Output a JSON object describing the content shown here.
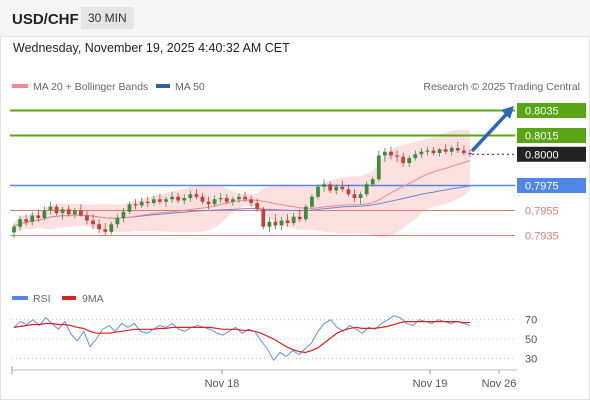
{
  "header": {
    "pair": "USD/CHF",
    "timeframe": "30 MIN"
  },
  "datetime": "Wednesday, November 19, 2025 4:40:32 AM CET",
  "legend": {
    "bollinger": "MA 20 + Bollinger Bands",
    "ma50": "MA 50",
    "credit": "Research © 2025 Trading Central"
  },
  "rsi_legend": {
    "rsi": "RSI",
    "ma9": "9MA"
  },
  "colors": {
    "green": "#5aa516",
    "blue": "#4f86e8",
    "red": "#e07b7b",
    "black": "#222222",
    "candle_up": "#3f8a3f",
    "candle_down": "#c83c3c",
    "ma20": "#f08a8a",
    "ma50": "#6f86c8",
    "band": "#fbdada",
    "arrow": "#2b67b3"
  },
  "chart_data": [
    {
      "type": "candlestick",
      "title": "USD/CHF 30 MIN",
      "ylim": [
        0.7905,
        0.8045
      ],
      "levels": [
        {
          "value": 0.8035,
          "label": "0.8035",
          "kind": "resistance",
          "color": "#5aa516"
        },
        {
          "value": 0.8015,
          "label": "0.8015",
          "kind": "resistance",
          "color": "#5aa516"
        },
        {
          "value": 0.8,
          "label": "0.8000",
          "kind": "last",
          "color": "#222222"
        },
        {
          "value": 0.7975,
          "label": "0.7975",
          "kind": "pivot",
          "color": "#4f86e8"
        },
        {
          "value": 0.7955,
          "label": "0.7955",
          "kind": "support",
          "color": "#e07b7b"
        },
        {
          "value": 0.7935,
          "label": "0.7935",
          "kind": "support",
          "color": "#e07b7b"
        }
      ],
      "x_ticks": [
        "Nov 18",
        "Nov 19",
        "Nov 26"
      ],
      "ohlc": [
        [
          0.79375,
          0.7944,
          0.7933,
          0.7942
        ],
        [
          0.7942,
          0.79505,
          0.7939,
          0.7948
        ],
        [
          0.7948,
          0.7952,
          0.7943,
          0.7946
        ],
        [
          0.7946,
          0.7954,
          0.7943,
          0.7951
        ],
        [
          0.7951,
          0.7956,
          0.7946,
          0.7949
        ],
        [
          0.7949,
          0.7958,
          0.7947,
          0.7955
        ],
        [
          0.7955,
          0.7962,
          0.7952,
          0.7958
        ],
        [
          0.7958,
          0.796,
          0.7951,
          0.7953
        ],
        [
          0.7953,
          0.7958,
          0.7948,
          0.7956
        ],
        [
          0.7956,
          0.7959,
          0.795,
          0.7952
        ],
        [
          0.7952,
          0.7957,
          0.7949,
          0.7955
        ],
        [
          0.7955,
          0.796,
          0.795,
          0.7951
        ],
        [
          0.7951,
          0.7955,
          0.7944,
          0.7947
        ],
        [
          0.7947,
          0.7952,
          0.794,
          0.7944
        ],
        [
          0.7944,
          0.7948,
          0.7937,
          0.794
        ],
        [
          0.794,
          0.7945,
          0.7935,
          0.7938
        ],
        [
          0.7938,
          0.7946,
          0.7936,
          0.7944
        ],
        [
          0.7944,
          0.7952,
          0.7941,
          0.7949
        ],
        [
          0.7949,
          0.7957,
          0.7946,
          0.7954
        ],
        [
          0.7954,
          0.7962,
          0.7952,
          0.796
        ],
        [
          0.796,
          0.7964,
          0.7956,
          0.7959
        ],
        [
          0.7959,
          0.7965,
          0.7957,
          0.7962
        ],
        [
          0.7962,
          0.7966,
          0.7958,
          0.7961
        ],
        [
          0.7961,
          0.7967,
          0.7959,
          0.7964
        ],
        [
          0.7964,
          0.7968,
          0.796,
          0.7962
        ],
        [
          0.7962,
          0.7966,
          0.7958,
          0.7964
        ],
        [
          0.7964,
          0.797,
          0.7961,
          0.7966
        ],
        [
          0.7966,
          0.7969,
          0.7961,
          0.7963
        ],
        [
          0.7963,
          0.7968,
          0.796,
          0.7965
        ],
        [
          0.7965,
          0.7971,
          0.7962,
          0.7968
        ],
        [
          0.7968,
          0.7972,
          0.7964,
          0.7966
        ],
        [
          0.7966,
          0.7969,
          0.796,
          0.7962
        ],
        [
          0.7962,
          0.7966,
          0.7956,
          0.796
        ],
        [
          0.796,
          0.7967,
          0.7958,
          0.7964
        ],
        [
          0.7964,
          0.7969,
          0.7961,
          0.7965
        ],
        [
          0.7965,
          0.7968,
          0.796,
          0.7962
        ],
        [
          0.7962,
          0.7966,
          0.7959,
          0.7964
        ],
        [
          0.7964,
          0.7969,
          0.7961,
          0.7966
        ],
        [
          0.7966,
          0.797,
          0.7962,
          0.7964
        ],
        [
          0.7964,
          0.7967,
          0.7958,
          0.7961
        ],
        [
          0.7961,
          0.7964,
          0.7954,
          0.7956
        ],
        [
          0.7956,
          0.7958,
          0.794,
          0.7942
        ],
        [
          0.7942,
          0.795,
          0.7938,
          0.7946
        ],
        [
          0.7946,
          0.7952,
          0.794,
          0.7943
        ],
        [
          0.7943,
          0.795,
          0.7939,
          0.7947
        ],
        [
          0.7947,
          0.7952,
          0.7942,
          0.7945
        ],
        [
          0.7945,
          0.7953,
          0.7943,
          0.795
        ],
        [
          0.795,
          0.7956,
          0.7946,
          0.7948
        ],
        [
          0.7948,
          0.796,
          0.7946,
          0.7958
        ],
        [
          0.7958,
          0.7968,
          0.7956,
          0.7966
        ],
        [
          0.7966,
          0.7976,
          0.7964,
          0.7974
        ],
        [
          0.7974,
          0.798,
          0.797,
          0.7976
        ],
        [
          0.7976,
          0.7978,
          0.7969,
          0.7971
        ],
        [
          0.7971,
          0.7976,
          0.7968,
          0.7974
        ],
        [
          0.7974,
          0.7979,
          0.797,
          0.7972
        ],
        [
          0.7972,
          0.7976,
          0.7966,
          0.7968
        ],
        [
          0.7968,
          0.7972,
          0.7962,
          0.7965
        ],
        [
          0.7965,
          0.797,
          0.796,
          0.7968
        ],
        [
          0.7968,
          0.7978,
          0.7966,
          0.7976
        ],
        [
          0.7976,
          0.7982,
          0.7974,
          0.798
        ],
        [
          0.798,
          0.8003,
          0.7978,
          0.7999
        ],
        [
          0.7999,
          0.8005,
          0.7994,
          0.8002
        ],
        [
          0.8002,
          0.8006,
          0.7996,
          0.7999
        ],
        [
          0.7999,
          0.8003,
          0.7994,
          0.7998
        ],
        [
          0.7998,
          0.8001,
          0.799,
          0.7993
        ],
        [
          0.7993,
          0.7999,
          0.799,
          0.7997
        ],
        [
          0.7997,
          0.8003,
          0.7995,
          0.8
        ],
        [
          0.8,
          0.8005,
          0.7997,
          0.8002
        ],
        [
          0.8002,
          0.8006,
          0.7999,
          0.8003
        ],
        [
          0.8003,
          0.8006,
          0.7999,
          0.8001
        ],
        [
          0.8001,
          0.8005,
          0.7998,
          0.8004
        ],
        [
          0.8004,
          0.8008,
          0.8,
          0.8002
        ],
        [
          0.8002,
          0.8007,
          0.7999,
          0.8005
        ],
        [
          0.8005,
          0.801,
          0.8001,
          0.8003
        ],
        [
          0.8003,
          0.8007,
          0.7999,
          0.8001
        ],
        [
          0.8001,
          0.8004,
          0.7998,
          0.8
        ]
      ]
    },
    {
      "type": "line",
      "title": "RSI",
      "ylim": [
        20,
        80
      ],
      "y_ticks": [
        30,
        50,
        70
      ],
      "series": [
        {
          "name": "RSI",
          "values": [
            62,
            68,
            65,
            70,
            64,
            72,
            66,
            60,
            68,
            55,
            48,
            58,
            42,
            50,
            60,
            64,
            58,
            66,
            62,
            66,
            58,
            56,
            60,
            64,
            62,
            66,
            60,
            58,
            62,
            64,
            62,
            60,
            56,
            54,
            58,
            62,
            56,
            60,
            58,
            48,
            40,
            28,
            36,
            32,
            38,
            34,
            40,
            46,
            58,
            66,
            70,
            62,
            58,
            64,
            60,
            56,
            62,
            60,
            66,
            70,
            74,
            72,
            66,
            64,
            70,
            68,
            66,
            70,
            68,
            66,
            68,
            66,
            64
          ]
        },
        {
          "name": "9MA",
          "values": [
            62,
            63,
            64,
            65,
            65,
            66,
            66,
            65,
            65,
            64,
            62,
            61,
            58,
            56,
            56,
            56,
            57,
            58,
            59,
            60,
            60,
            60,
            60,
            61,
            61,
            62,
            62,
            62,
            62,
            62,
            62,
            62,
            61,
            60,
            60,
            60,
            59,
            59,
            58,
            56,
            53,
            50,
            46,
            42,
            39,
            37,
            36,
            38,
            41,
            46,
            51,
            56,
            59,
            61,
            62,
            61,
            61,
            61,
            62,
            63,
            65,
            67,
            68,
            68,
            68,
            68,
            68,
            68,
            68,
            68,
            68,
            67,
            67
          ]
        }
      ]
    }
  ]
}
